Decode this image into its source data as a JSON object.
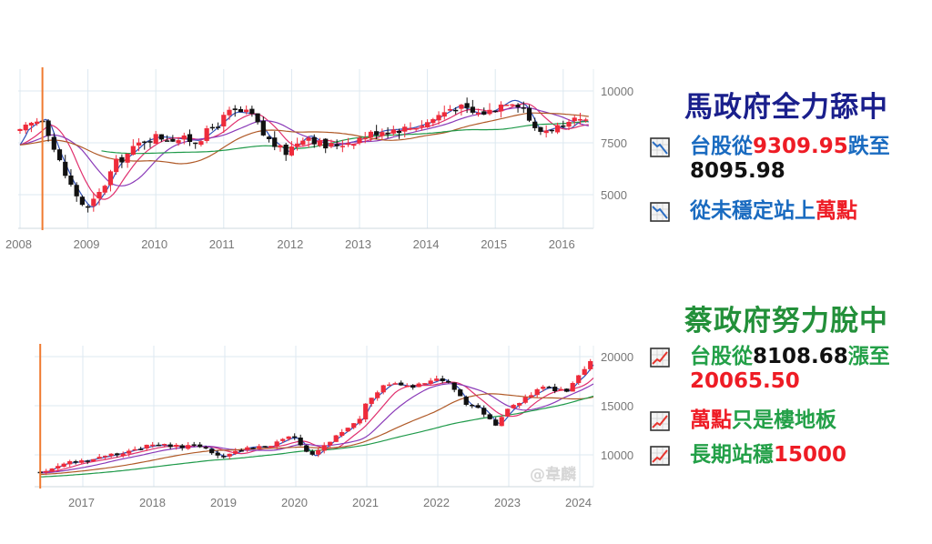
{
  "colors": {
    "up": "#ee2b3b",
    "down": "#111111",
    "ma_blue": "#3050b8",
    "ma_pink": "#e0306e",
    "ma_purple": "#8a3ab8",
    "ma_brown": "#b05a28",
    "ma_green": "#1f9a4a",
    "marker": "#f07a30",
    "grid": "#dde8f0",
    "headline_ma": "#1a1f8c",
    "headline_tsai": "#23903a",
    "text_blue": "#1a6bc0",
    "text_green": "#23a048",
    "text_red": "#ee1c25",
    "text_black": "#111111"
  },
  "panels": {
    "ma": {
      "headline": "馬政府全力舔中",
      "bullets": [
        {
          "icon": "chart-decreasing-icon",
          "line1": [
            {
              "text": "台股從",
              "color": "text_blue"
            },
            {
              "text": "9309.95",
              "color": "text_red"
            },
            {
              "text": "跌至",
              "color": "text_blue"
            }
          ],
          "line2": [
            {
              "text": "8095.98",
              "color": "text_black"
            }
          ]
        },
        {
          "icon": "chart-decreasing-icon",
          "line1": [
            {
              "text": "從未穩定站上",
              "color": "text_blue"
            },
            {
              "text": "萬點",
              "color": "text_red"
            }
          ]
        }
      ]
    },
    "tsai": {
      "headline": "蔡政府努力脫中",
      "bullets": [
        {
          "icon": "chart-increasing-icon",
          "line1": [
            {
              "text": "台股從",
              "color": "text_green"
            },
            {
              "text": "8108.68",
              "color": "text_black"
            },
            {
              "text": "漲至",
              "color": "text_green"
            }
          ],
          "line2": [
            {
              "text": "20065.50",
              "color": "text_red"
            }
          ]
        },
        {
          "icon": "chart-increasing-icon",
          "line1": [
            {
              "text": "萬點",
              "color": "text_red"
            },
            {
              "text": "只是樓地板",
              "color": "text_green"
            }
          ]
        },
        {
          "icon": "chart-increasing-icon",
          "line1": [
            {
              "text": "長期站穩",
              "color": "text_green"
            },
            {
              "text": "15000",
              "color": "text_red"
            }
          ]
        }
      ]
    }
  },
  "watermark": "@韋麟",
  "chart_data": [
    {
      "type": "candlestick",
      "title": "TAIEX monthly candlestick (2008–2016)",
      "xlabel": "",
      "ylabel": "",
      "x_ticks": [
        "2008",
        "2009",
        "2010",
        "2011",
        "2012",
        "2013",
        "2014",
        "2015",
        "2016"
      ],
      "y_ticks": [
        5000,
        7500,
        10000
      ],
      "ylim": [
        3500,
        11000
      ],
      "grid": true,
      "marker_line_date": "2008.33",
      "moving_averages": [
        "blue (short)",
        "pink",
        "purple",
        "brown",
        "green (long)"
      ],
      "approx_monthly_close": [
        {
          "t": 2008.0,
          "v": 8000
        },
        {
          "t": 2008.2,
          "v": 8500
        },
        {
          "t": 2008.35,
          "v": 8700
        },
        {
          "t": 2008.5,
          "v": 7200
        },
        {
          "t": 2008.7,
          "v": 5700
        },
        {
          "t": 2008.9,
          "v": 4600
        },
        {
          "t": 2009.0,
          "v": 4300
        },
        {
          "t": 2009.2,
          "v": 5200
        },
        {
          "t": 2009.4,
          "v": 6500
        },
        {
          "t": 2009.6,
          "v": 7000
        },
        {
          "t": 2009.8,
          "v": 7600
        },
        {
          "t": 2010.0,
          "v": 7800
        },
        {
          "t": 2010.3,
          "v": 7700
        },
        {
          "t": 2010.6,
          "v": 7600
        },
        {
          "t": 2010.9,
          "v": 8400
        },
        {
          "t": 2011.1,
          "v": 9000
        },
        {
          "t": 2011.4,
          "v": 8900
        },
        {
          "t": 2011.6,
          "v": 7800
        },
        {
          "t": 2011.9,
          "v": 7000
        },
        {
          "t": 2012.2,
          "v": 7900
        },
        {
          "t": 2012.5,
          "v": 7300
        },
        {
          "t": 2012.9,
          "v": 7600
        },
        {
          "t": 2013.3,
          "v": 8100
        },
        {
          "t": 2013.7,
          "v": 8200
        },
        {
          "t": 2014.0,
          "v": 8500
        },
        {
          "t": 2014.4,
          "v": 9300
        },
        {
          "t": 2014.7,
          "v": 8900
        },
        {
          "t": 2014.9,
          "v": 9000
        },
        {
          "t": 2015.2,
          "v": 9600
        },
        {
          "t": 2015.4,
          "v": 9300
        },
        {
          "t": 2015.6,
          "v": 8000
        },
        {
          "t": 2015.9,
          "v": 8300
        },
        {
          "t": 2016.0,
          "v": 8100
        },
        {
          "t": 2016.2,
          "v": 8600
        },
        {
          "t": 2016.4,
          "v": 8400
        }
      ],
      "annotations": {
        "start": 9309.95,
        "end": 8095.98
      }
    },
    {
      "type": "candlestick",
      "title": "TAIEX monthly candlestick (2016–2024)",
      "xlabel": "",
      "ylabel": "",
      "x_ticks": [
        "2017",
        "2018",
        "2019",
        "2020",
        "2021",
        "2022",
        "2023",
        "2024"
      ],
      "y_ticks": [
        10000,
        15000,
        20000
      ],
      "ylim": [
        6800,
        21500
      ],
      "grid": true,
      "marker_line_date": "2016.4",
      "moving_averages": [
        "blue (short)",
        "pink",
        "purple",
        "brown",
        "green (long)"
      ],
      "approx_monthly_close": [
        {
          "t": 2016.4,
          "v": 8200
        },
        {
          "t": 2016.7,
          "v": 9100
        },
        {
          "t": 2017.0,
          "v": 9400
        },
        {
          "t": 2017.4,
          "v": 10000
        },
        {
          "t": 2017.8,
          "v": 10700
        },
        {
          "t": 2018.0,
          "v": 11000
        },
        {
          "t": 2018.4,
          "v": 10800
        },
        {
          "t": 2018.7,
          "v": 10900
        },
        {
          "t": 2018.9,
          "v": 9800
        },
        {
          "t": 2019.0,
          "v": 9900
        },
        {
          "t": 2019.3,
          "v": 10800
        },
        {
          "t": 2019.6,
          "v": 10800
        },
        {
          "t": 2019.9,
          "v": 11800
        },
        {
          "t": 2020.0,
          "v": 11600
        },
        {
          "t": 2020.2,
          "v": 9700
        },
        {
          "t": 2020.5,
          "v": 11600
        },
        {
          "t": 2020.7,
          "v": 12600
        },
        {
          "t": 2020.9,
          "v": 13800
        },
        {
          "t": 2021.0,
          "v": 15500
        },
        {
          "t": 2021.3,
          "v": 17300
        },
        {
          "t": 2021.6,
          "v": 16900
        },
        {
          "t": 2021.9,
          "v": 17400
        },
        {
          "t": 2022.0,
          "v": 17800
        },
        {
          "t": 2022.2,
          "v": 17000
        },
        {
          "t": 2022.4,
          "v": 15000
        },
        {
          "t": 2022.6,
          "v": 14700
        },
        {
          "t": 2022.8,
          "v": 12900
        },
        {
          "t": 2023.0,
          "v": 14700
        },
        {
          "t": 2023.2,
          "v": 15700
        },
        {
          "t": 2023.5,
          "v": 16900
        },
        {
          "t": 2023.8,
          "v": 16400
        },
        {
          "t": 2023.9,
          "v": 17500
        },
        {
          "t": 2024.0,
          "v": 18000
        },
        {
          "t": 2024.2,
          "v": 20065.5
        }
      ],
      "annotations": {
        "start": 8108.68,
        "end": 20065.5,
        "floor": 10000,
        "support": 15000
      }
    }
  ]
}
